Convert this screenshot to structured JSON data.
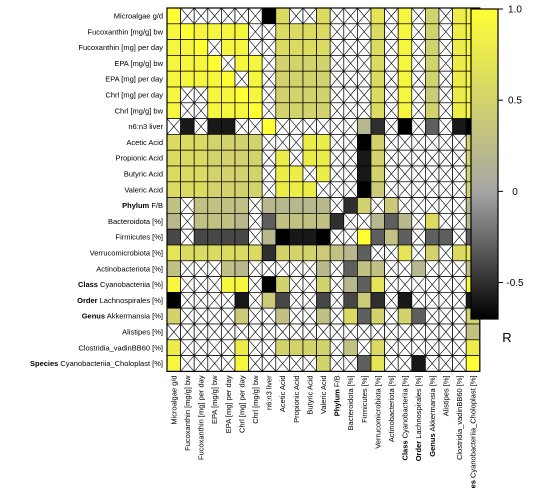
{
  "chart_data": {
    "type": "heatmap",
    "variables": [
      {
        "prefix": "",
        "name": "Microalgae g/d"
      },
      {
        "prefix": "",
        "name": "Fucoxanthin [mg/g] bw"
      },
      {
        "prefix": "",
        "name": "Fucoxanthin [mg] per day"
      },
      {
        "prefix": "",
        "name": "EPA [mg/g] bw"
      },
      {
        "prefix": "",
        "name": "EPA [mg] per day"
      },
      {
        "prefix": "",
        "name": "Chrl [mg] per day"
      },
      {
        "prefix": "",
        "name": "Chrl [mg/g] bw"
      },
      {
        "prefix": "",
        "name": "n6:n3 liver"
      },
      {
        "prefix": "",
        "name": "Acetic Acid"
      },
      {
        "prefix": "",
        "name": "Propionic Acid"
      },
      {
        "prefix": "",
        "name": "Butyric Acid"
      },
      {
        "prefix": "",
        "name": "Valeric Acid"
      },
      {
        "prefix": "Phylum",
        "name": "F/B"
      },
      {
        "prefix": "",
        "name": "Bacteroidota [%]"
      },
      {
        "prefix": "",
        "name": "Firmicutes [%]"
      },
      {
        "prefix": "",
        "name": "Verrucomicrobiota [%]"
      },
      {
        "prefix": "",
        "name": "Actinobacteriota [%]"
      },
      {
        "prefix": "Class",
        "name": "Cyanobacteriia [%]"
      },
      {
        "prefix": "Order",
        "name": "Lachnospirales [%]"
      },
      {
        "prefix": "Genus",
        "name": "Akkermansia [%]"
      },
      {
        "prefix": "",
        "name": "Alistipes [%]"
      },
      {
        "prefix": "",
        "name": "Clostridia_vadinBB60 [%]"
      },
      {
        "prefix": "Species",
        "name": "Cyanobacteriia_Choloplast [%]"
      }
    ],
    "r_values": [
      [
        1.0,
        0.9,
        0.9,
        0.9,
        0.9,
        0.9,
        0.9,
        -0.9,
        0.6,
        0.6,
        0.6,
        0.6,
        0.3,
        0.2,
        -0.4,
        0.7,
        0.3,
        0.9,
        -0.7,
        0.5,
        0.3,
        0.8,
        0.9
      ],
      [
        0.9,
        1.0,
        0.9,
        0.9,
        0.9,
        0.9,
        0.9,
        -0.6,
        0.6,
        0.6,
        0.6,
        0.6,
        0.3,
        0.3,
        -0.4,
        0.6,
        0.3,
        0.9,
        -0.6,
        0.5,
        0.3,
        0.8,
        0.9
      ],
      [
        0.9,
        0.9,
        1.0,
        0.9,
        0.9,
        0.9,
        0.9,
        -0.6,
        0.6,
        0.6,
        0.6,
        0.6,
        0.3,
        0.3,
        -0.4,
        0.6,
        0.3,
        0.9,
        -0.6,
        0.5,
        0.3,
        0.8,
        0.9
      ],
      [
        0.9,
        0.9,
        0.9,
        1.0,
        0.9,
        0.9,
        0.9,
        -0.6,
        0.5,
        0.5,
        0.5,
        0.5,
        0.3,
        0.3,
        -0.4,
        0.6,
        0.2,
        0.9,
        -0.7,
        0.5,
        0.3,
        0.8,
        0.9
      ],
      [
        0.9,
        0.9,
        0.9,
        0.9,
        1.0,
        0.9,
        0.9,
        -0.6,
        0.5,
        0.5,
        0.5,
        0.5,
        0.3,
        0.3,
        -0.4,
        0.6,
        0.3,
        0.9,
        -0.7,
        0.5,
        0.3,
        0.8,
        0.9
      ],
      [
        0.9,
        0.9,
        0.9,
        0.9,
        0.9,
        1.0,
        0.9,
        -0.6,
        0.5,
        0.5,
        0.5,
        0.5,
        0.3,
        0.2,
        -0.4,
        0.6,
        0.2,
        0.9,
        -0.6,
        0.4,
        0.3,
        0.8,
        0.9
      ],
      [
        0.9,
        0.9,
        0.9,
        0.9,
        0.9,
        0.9,
        1.0,
        -0.6,
        0.5,
        0.5,
        0.5,
        0.5,
        0.3,
        0.3,
        -0.4,
        0.6,
        0.3,
        0.9,
        -0.6,
        0.5,
        0.3,
        0.8,
        0.9
      ],
      [
        -0.9,
        -0.6,
        -0.6,
        -0.6,
        -0.6,
        -0.6,
        -0.6,
        1.0,
        -0.4,
        -0.3,
        -0.3,
        -0.3,
        0.2,
        -0.3,
        0.2,
        -0.5,
        0.2,
        -0.7,
        0.4,
        -0.3,
        -0.3,
        -0.6,
        -0.8
      ],
      [
        0.6,
        0.6,
        0.6,
        0.5,
        0.5,
        0.5,
        0.5,
        -0.4,
        1.0,
        0.8,
        0.8,
        0.8,
        0.2,
        0.3,
        -0.7,
        0.5,
        0.2,
        0.5,
        -0.4,
        0.3,
        0.2,
        0.5,
        0.5
      ],
      [
        0.6,
        0.6,
        0.6,
        0.5,
        0.5,
        0.5,
        0.5,
        -0.3,
        0.8,
        1.0,
        0.8,
        0.8,
        0.2,
        0.3,
        -0.6,
        0.5,
        0.2,
        0.5,
        -0.4,
        0.3,
        0.2,
        0.5,
        0.5
      ],
      [
        0.6,
        0.6,
        0.6,
        0.5,
        0.5,
        0.5,
        0.5,
        -0.3,
        0.8,
        0.8,
        1.0,
        0.8,
        0.2,
        0.3,
        -0.6,
        0.5,
        0.2,
        0.5,
        -0.4,
        0.3,
        0.2,
        0.5,
        0.5
      ],
      [
        0.6,
        0.6,
        0.6,
        0.5,
        0.5,
        0.5,
        0.5,
        -0.3,
        0.8,
        0.8,
        0.8,
        1.0,
        0.2,
        0.3,
        -0.7,
        0.4,
        0.2,
        0.5,
        -0.4,
        0.3,
        0.2,
        0.5,
        0.5
      ],
      [
        0.3,
        0.3,
        0.3,
        0.3,
        0.3,
        0.3,
        0.3,
        0.2,
        0.2,
        0.2,
        0.2,
        0.2,
        1.0,
        -0.5,
        0.5,
        0.3,
        0.4,
        -0.2,
        0.3,
        -0.3,
        -0.4,
        0.2,
        0.2
      ],
      [
        0.2,
        0.3,
        0.3,
        0.3,
        0.3,
        0.2,
        0.3,
        -0.3,
        0.3,
        0.3,
        0.3,
        0.3,
        -0.5,
        1.0,
        -0.3,
        0.2,
        -0.3,
        0.2,
        -0.4,
        0.6,
        -0.2,
        0.3,
        0.2
      ],
      [
        -0.4,
        -0.4,
        -0.4,
        -0.4,
        -0.4,
        -0.4,
        -0.4,
        0.2,
        -0.7,
        -0.6,
        -0.6,
        -0.7,
        0.5,
        -0.3,
        1.0,
        -0.3,
        0.3,
        -0.3,
        0.4,
        -0.3,
        -0.3,
        -0.3,
        -0.3
      ],
      [
        0.7,
        0.6,
        0.6,
        0.6,
        0.6,
        0.6,
        0.6,
        -0.5,
        0.5,
        0.5,
        0.5,
        0.4,
        0.3,
        0.2,
        -0.3,
        1.0,
        0.3,
        0.7,
        -0.5,
        0.5,
        0.3,
        0.6,
        0.7
      ],
      [
        0.3,
        0.3,
        0.3,
        0.2,
        0.3,
        0.2,
        0.3,
        0.2,
        0.2,
        0.2,
        0.2,
        0.2,
        0.4,
        -0.3,
        0.3,
        0.3,
        1.0,
        0.3,
        0.2,
        0.2,
        -0.3,
        0.3,
        0.3
      ],
      [
        0.9,
        0.9,
        0.9,
        0.9,
        0.9,
        0.9,
        0.9,
        -0.7,
        0.5,
        0.5,
        0.5,
        0.5,
        -0.2,
        0.2,
        -0.3,
        0.7,
        0.3,
        1.0,
        -0.6,
        0.5,
        0.3,
        0.8,
        0.9
      ],
      [
        -0.7,
        -0.6,
        -0.6,
        -0.7,
        -0.7,
        -0.6,
        -0.6,
        0.4,
        -0.4,
        -0.4,
        -0.4,
        -0.4,
        0.3,
        -0.4,
        0.4,
        -0.5,
        0.2,
        -0.6,
        1.0,
        -0.3,
        -0.3,
        -0.5,
        -0.6
      ],
      [
        0.5,
        0.5,
        0.5,
        0.5,
        0.5,
        0.4,
        0.5,
        -0.3,
        0.3,
        0.3,
        0.3,
        0.3,
        -0.3,
        0.6,
        -0.3,
        0.5,
        0.2,
        0.5,
        -0.3,
        1.0,
        0.3,
        0.5,
        0.5
      ],
      [
        0.3,
        0.3,
        0.3,
        0.3,
        0.3,
        0.3,
        0.3,
        -0.3,
        0.2,
        0.2,
        0.2,
        0.2,
        -0.4,
        -0.2,
        -0.3,
        0.3,
        -0.3,
        0.3,
        -0.3,
        0.3,
        1.0,
        0.3,
        0.3
      ],
      [
        0.8,
        0.8,
        0.8,
        0.8,
        0.8,
        0.8,
        0.8,
        -0.6,
        0.5,
        0.5,
        0.5,
        0.5,
        0.2,
        0.3,
        -0.3,
        0.6,
        0.3,
        0.8,
        -0.5,
        0.5,
        0.3,
        1.0,
        0.8
      ],
      [
        0.9,
        0.9,
        0.9,
        0.9,
        0.9,
        0.9,
        0.9,
        -0.8,
        0.5,
        0.5,
        0.5,
        0.5,
        0.2,
        0.2,
        -0.3,
        0.7,
        0.3,
        0.9,
        -0.6,
        0.5,
        0.3,
        0.8,
        1.0
      ]
    ],
    "non_significant": [
      [
        0,
        1
      ],
      [
        0,
        2
      ],
      [
        0,
        3
      ],
      [
        0,
        4
      ],
      [
        0,
        5
      ],
      [
        0,
        6
      ],
      [
        0,
        9
      ],
      [
        0,
        10
      ],
      [
        0,
        12
      ],
      [
        0,
        13
      ],
      [
        0,
        14
      ],
      [
        0,
        16
      ],
      [
        0,
        18
      ],
      [
        0,
        20
      ],
      [
        1,
        6
      ],
      [
        1,
        7
      ],
      [
        1,
        12
      ],
      [
        1,
        13
      ],
      [
        1,
        14
      ],
      [
        1,
        16
      ],
      [
        1,
        18
      ],
      [
        1,
        20
      ],
      [
        2,
        3
      ],
      [
        2,
        6
      ],
      [
        2,
        7
      ],
      [
        2,
        12
      ],
      [
        2,
        13
      ],
      [
        2,
        14
      ],
      [
        2,
        16
      ],
      [
        2,
        18
      ],
      [
        2,
        20
      ],
      [
        3,
        4
      ],
      [
        3,
        7
      ],
      [
        3,
        12
      ],
      [
        3,
        13
      ],
      [
        3,
        14
      ],
      [
        3,
        16
      ],
      [
        3,
        18
      ],
      [
        3,
        20
      ],
      [
        4,
        5
      ],
      [
        4,
        7
      ],
      [
        4,
        12
      ],
      [
        4,
        13
      ],
      [
        4,
        14
      ],
      [
        4,
        16
      ],
      [
        4,
        18
      ],
      [
        4,
        20
      ],
      [
        5,
        1
      ],
      [
        5,
        2
      ],
      [
        5,
        7
      ],
      [
        5,
        12
      ],
      [
        5,
        13
      ],
      [
        5,
        14
      ],
      [
        5,
        16
      ],
      [
        5,
        18
      ],
      [
        5,
        20
      ],
      [
        6,
        1
      ],
      [
        6,
        2
      ],
      [
        6,
        7
      ],
      [
        6,
        12
      ],
      [
        6,
        13
      ],
      [
        6,
        14
      ],
      [
        6,
        16
      ],
      [
        6,
        18
      ],
      [
        6,
        20
      ],
      [
        7,
        0
      ],
      [
        7,
        2
      ],
      [
        7,
        5
      ],
      [
        7,
        6
      ],
      [
        7,
        8
      ],
      [
        7,
        9
      ],
      [
        7,
        10
      ],
      [
        7,
        11
      ],
      [
        7,
        12
      ],
      [
        7,
        13
      ],
      [
        7,
        16
      ],
      [
        7,
        18
      ],
      [
        7,
        20
      ],
      [
        8,
        7
      ],
      [
        8,
        8
      ],
      [
        8,
        9
      ],
      [
        8,
        12
      ],
      [
        8,
        13
      ],
      [
        8,
        16
      ],
      [
        8,
        17
      ],
      [
        8,
        18
      ],
      [
        8,
        19
      ],
      [
        8,
        20
      ],
      [
        8,
        21
      ],
      [
        9,
        7
      ],
      [
        9,
        9
      ],
      [
        9,
        12
      ],
      [
        9,
        13
      ],
      [
        9,
        16
      ],
      [
        9,
        17
      ],
      [
        9,
        18
      ],
      [
        9,
        19
      ],
      [
        9,
        20
      ],
      [
        9,
        21
      ],
      [
        10,
        7
      ],
      [
        10,
        10
      ],
      [
        10,
        12
      ],
      [
        10,
        13
      ],
      [
        10,
        16
      ],
      [
        10,
        17
      ],
      [
        10,
        18
      ],
      [
        10,
        19
      ],
      [
        10,
        20
      ],
      [
        10,
        21
      ],
      [
        11,
        7
      ],
      [
        11,
        11
      ],
      [
        11,
        12
      ],
      [
        11,
        13
      ],
      [
        11,
        16
      ],
      [
        11,
        17
      ],
      [
        11,
        18
      ],
      [
        11,
        19
      ],
      [
        11,
        20
      ],
      [
        11,
        21
      ],
      [
        12,
        1
      ],
      [
        12,
        6
      ],
      [
        12,
        12
      ],
      [
        12,
        15
      ],
      [
        12,
        17
      ],
      [
        12,
        18
      ],
      [
        12,
        19
      ],
      [
        12,
        20
      ],
      [
        12,
        21
      ],
      [
        13,
        1
      ],
      [
        13,
        6
      ],
      [
        13,
        13
      ],
      [
        13,
        14
      ],
      [
        13,
        18
      ],
      [
        13,
        20
      ],
      [
        13,
        21
      ],
      [
        14,
        1
      ],
      [
        14,
        6
      ],
      [
        14,
        12
      ],
      [
        14,
        13
      ],
      [
        14,
        18
      ],
      [
        14,
        21
      ],
      [
        15,
        15
      ],
      [
        15,
        16
      ],
      [
        15,
        18
      ],
      [
        15,
        20
      ],
      [
        16,
        1
      ],
      [
        16,
        2
      ],
      [
        16,
        3
      ],
      [
        16,
        6
      ],
      [
        16,
        7
      ],
      [
        16,
        8
      ],
      [
        16,
        9
      ],
      [
        16,
        10
      ],
      [
        16,
        12
      ],
      [
        16,
        16
      ],
      [
        16,
        17
      ],
      [
        16,
        19
      ],
      [
        16,
        20
      ],
      [
        16,
        21
      ],
      [
        17,
        1
      ],
      [
        17,
        2
      ],
      [
        17,
        3
      ],
      [
        17,
        6
      ],
      [
        17,
        9
      ],
      [
        17,
        10
      ],
      [
        17,
        12
      ],
      [
        17,
        16
      ],
      [
        17,
        17
      ],
      [
        17,
        18
      ],
      [
        17,
        19
      ],
      [
        17,
        20
      ],
      [
        17,
        21
      ],
      [
        18,
        1
      ],
      [
        18,
        2
      ],
      [
        18,
        3
      ],
      [
        18,
        4
      ],
      [
        18,
        6
      ],
      [
        18,
        9
      ],
      [
        18,
        10
      ],
      [
        18,
        12
      ],
      [
        18,
        16
      ],
      [
        18,
        18
      ],
      [
        18,
        19
      ],
      [
        18,
        20
      ],
      [
        18,
        21
      ],
      [
        19,
        1
      ],
      [
        19,
        2
      ],
      [
        19,
        3
      ],
      [
        19,
        4
      ],
      [
        19,
        6
      ],
      [
        19,
        7
      ],
      [
        19,
        9
      ],
      [
        19,
        10
      ],
      [
        19,
        12
      ],
      [
        19,
        16
      ],
      [
        19,
        19
      ],
      [
        19,
        20
      ],
      [
        19,
        21
      ],
      [
        20,
        0
      ],
      [
        20,
        1
      ],
      [
        20,
        2
      ],
      [
        20,
        3
      ],
      [
        20,
        4
      ],
      [
        20,
        5
      ],
      [
        20,
        6
      ],
      [
        20,
        7
      ],
      [
        20,
        8
      ],
      [
        20,
        9
      ],
      [
        20,
        10
      ],
      [
        20,
        11
      ],
      [
        20,
        12
      ],
      [
        20,
        13
      ],
      [
        20,
        14
      ],
      [
        20,
        15
      ],
      [
        20,
        16
      ],
      [
        20,
        17
      ],
      [
        20,
        18
      ],
      [
        20,
        19
      ],
      [
        20,
        20
      ],
      [
        20,
        21
      ],
      [
        21,
        1
      ],
      [
        21,
        2
      ],
      [
        21,
        3
      ],
      [
        21,
        4
      ],
      [
        21,
        6
      ],
      [
        21,
        7
      ],
      [
        21,
        12
      ],
      [
        21,
        14
      ],
      [
        21,
        16
      ],
      [
        21,
        17
      ],
      [
        21,
        18
      ],
      [
        21,
        19
      ],
      [
        21,
        20
      ],
      [
        21,
        21
      ],
      [
        22,
        1
      ],
      [
        22,
        2
      ],
      [
        22,
        3
      ],
      [
        22,
        4
      ],
      [
        22,
        6
      ],
      [
        22,
        7
      ],
      [
        22,
        8
      ],
      [
        22,
        9
      ],
      [
        22,
        10
      ],
      [
        22,
        12
      ],
      [
        22,
        13
      ],
      [
        22,
        16
      ],
      [
        22,
        17
      ],
      [
        22,
        19
      ],
      [
        22,
        20
      ],
      [
        22,
        21
      ]
    ],
    "colorbar": {
      "label": "R",
      "ticks": [
        "1.0",
        "0.5",
        "0",
        "-0.5"
      ],
      "range": [
        -0.7,
        1.0
      ],
      "colors": {
        "high": "#ffff33",
        "mid": "#a6a6a6",
        "low": "#000000",
        "gridline": "#000000"
      }
    }
  }
}
